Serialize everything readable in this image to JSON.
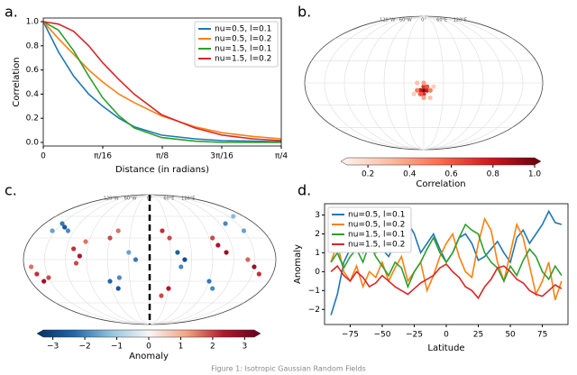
{
  "chart_data": [
    {
      "type": "line",
      "panel_label": "a.",
      "x_label": "Distance (in radians)",
      "y_label": "Correlation",
      "x": [
        0,
        0.05,
        0.1,
        0.15,
        0.196,
        0.25,
        0.3,
        0.39,
        0.5,
        0.59,
        0.69,
        0.785
      ],
      "xlim": [
        0,
        0.7854
      ],
      "xticks": [
        0,
        {
          "value": 0.19635,
          "label": "π/16"
        },
        {
          "value": 0.3927,
          "label": "π/8"
        },
        {
          "value": 0.58905,
          "label": "3π/16"
        },
        {
          "value": 0.7854,
          "label": "π/4"
        }
      ],
      "ylim": [
        -0.03,
        1.03
      ],
      "yticks": [
        {
          "value": 0,
          "label": "0.0"
        },
        0.2,
        0.4,
        0.6,
        0.8,
        {
          "value": 1,
          "label": "1.0"
        }
      ],
      "legend": "upper right",
      "series": [
        {
          "name": "nu=0.5, l=0.1",
          "color": "#1f77b4",
          "values": [
            1,
            0.75,
            0.55,
            0.4,
            0.3,
            0.2,
            0.13,
            0.06,
            0.03,
            0.015,
            0.01,
            0.005
          ]
        },
        {
          "name": "nu=0.5, l=0.2",
          "color": "#ff7f0e",
          "values": [
            1,
            0.86,
            0.73,
            0.6,
            0.5,
            0.4,
            0.33,
            0.22,
            0.13,
            0.08,
            0.05,
            0.03
          ]
        },
        {
          "name": "nu=1.5, l=0.1",
          "color": "#2ca02c",
          "values": [
            1,
            0.93,
            0.76,
            0.55,
            0.37,
            0.22,
            0.12,
            0.04,
            0.01,
            0,
            0,
            0
          ]
        },
        {
          "name": "nu=1.5, l=0.2",
          "color": "#d62728",
          "values": [
            1,
            0.98,
            0.92,
            0.8,
            0.66,
            0.52,
            0.4,
            0.23,
            0.12,
            0.06,
            0.03,
            0.015
          ]
        }
      ]
    },
    {
      "type": "map",
      "panel_label": "b.",
      "lon_ticks": [
        {
          "value": -120,
          "label": "120°W"
        },
        {
          "value": -60,
          "label": "60°W"
        },
        {
          "value": 0,
          "label": "0°"
        },
        {
          "value": 60,
          "label": "60°E"
        },
        {
          "value": 120,
          "label": "120°E"
        }
      ],
      "lon": [
        0,
        5,
        -5,
        0,
        0,
        5,
        -5,
        10,
        -10,
        0,
        0,
        10,
        -10,
        15,
        -15
      ],
      "lat": [
        -10,
        -10,
        -10,
        -5,
        -15,
        -5,
        -15,
        -10,
        -10,
        0,
        -20,
        -20,
        0,
        -5,
        -15
      ],
      "values": [
        1.0,
        0.8,
        0.8,
        0.7,
        0.7,
        0.6,
        0.6,
        0.5,
        0.5,
        0.4,
        0.4,
        0.3,
        0.3,
        0.25,
        0.25
      ],
      "colorbar": {
        "label": "Correlation",
        "lim": [
          0.1,
          1.0
        ],
        "ticks": [
          0.2,
          0.4,
          0.6,
          0.8,
          {
            "value": 1,
            "label": "1.0"
          }
        ],
        "colormap": [
          "#fff5f0",
          "#fcbba1",
          "#fb6a4a",
          "#cb181d",
          "#67000d"
        ]
      }
    },
    {
      "type": "map",
      "panel_label": "c.",
      "dashed_meridian": 0,
      "lon_ticks": [
        {
          "value": -120,
          "label": "120°W"
        },
        {
          "value": -60,
          "label": "60°W"
        },
        {
          "value": 0,
          "label": "0°"
        },
        {
          "value": 60,
          "label": "60°E"
        },
        {
          "value": 120,
          "label": "120°E"
        }
      ],
      "lon": [
        -150,
        -140,
        -130,
        -155,
        -165,
        -160,
        -150,
        -170,
        -110,
        -100,
        -105,
        -95,
        -60,
        -50,
        -45,
        -60,
        -50,
        -30,
        -20,
        20,
        30,
        40,
        50,
        45,
        30,
        20,
        100,
        110,
        95,
        90,
        100,
        150,
        160,
        140,
        130,
        150,
        160
      ],
      "lat": [
        50,
        45,
        40,
        40,
        -20,
        -30,
        -25,
        -10,
        15,
        5,
        -5,
        25,
        -30,
        -40,
        -25,
        30,
        40,
        10,
        0,
        40,
        30,
        10,
        0,
        -10,
        -40,
        -50,
        20,
        10,
        30,
        -30,
        -40,
        -10,
        -20,
        0,
        50,
        40,
        60
      ],
      "values": [
        -2,
        -2.5,
        -1.8,
        -1.5,
        2,
        2.5,
        1.8,
        1.5,
        2,
        2.3,
        1.8,
        1.5,
        -2.2,
        -2.5,
        -1.8,
        1.8,
        1.5,
        -1.5,
        -2,
        2,
        1.8,
        -2.3,
        -2.7,
        -1.8,
        2.2,
        1.8,
        2.3,
        2.6,
        1.8,
        -2,
        -1.8,
        2.5,
        2,
        1.6,
        -1.8,
        -1.5,
        -1.2
      ],
      "colorbar": {
        "label": "Anomaly",
        "lim": [
          -3.3,
          3.3
        ],
        "ticks": [
          {
            "value": -3,
            "label": "−3"
          },
          {
            "value": -2,
            "label": "−2"
          },
          {
            "value": -1,
            "label": "−1"
          },
          0,
          1,
          2,
          3
        ],
        "colormap": [
          "#053061",
          "#2166ac",
          "#92c5de",
          "#f7f7f7",
          "#f4a582",
          "#b2182b",
          "#67001f"
        ]
      }
    },
    {
      "type": "line",
      "panel_label": "d.",
      "x_label": "Latitude",
      "y_label": "Anomaly",
      "x": [
        -90,
        -85,
        -80,
        -75,
        -70,
        -65,
        -60,
        -55,
        -50,
        -45,
        -40,
        -35,
        -30,
        -25,
        -20,
        -15,
        -10,
        -5,
        0,
        5,
        10,
        15,
        20,
        25,
        30,
        35,
        40,
        45,
        50,
        55,
        60,
        65,
        70,
        75,
        80,
        85,
        90
      ],
      "xlim": [
        -95,
        95
      ],
      "xticks": [
        {
          "value": -75,
          "label": "−75"
        },
        {
          "value": -50,
          "label": "−50"
        },
        {
          "value": -25,
          "label": "−25"
        },
        0,
        25,
        50,
        75
      ],
      "ylim": [
        -2.8,
        3.6
      ],
      "yticks": [
        {
          "value": -2,
          "label": "−2"
        },
        {
          "value": -1,
          "label": "−1"
        },
        0,
        1,
        2,
        3
      ],
      "legend": "upper left",
      "series": [
        {
          "name": "nu=0.5, l=0.1",
          "color": "#1f77b4",
          "values": [
            -2.3,
            -1.2,
            0.5,
            1.2,
            1.5,
            1.0,
            1.8,
            1.0,
            1.2,
            0.8,
            1.5,
            2.3,
            2.6,
            2.0,
            1.0,
            1.5,
            2.0,
            1.2,
            0.5,
            1.0,
            1.8,
            2.0,
            1.5,
            0.6,
            0.8,
            1.2,
            1.6,
            1.0,
            0.5,
            1.8,
            2.2,
            1.5,
            2.0,
            2.5,
            3.2,
            2.6,
            2.5
          ]
        },
        {
          "name": "nu=0.5, l=0.2",
          "color": "#ff7f0e",
          "values": [
            0.5,
            1.5,
            0.0,
            -0.5,
            0.3,
            -0.8,
            0.0,
            -0.3,
            0.5,
            -0.5,
            0.2,
            0.8,
            -0.5,
            0.0,
            0.5,
            -1.0,
            -0.2,
            0.8,
            1.5,
            2.0,
            0.8,
            0.0,
            -0.3,
            1.5,
            2.8,
            2.2,
            0.5,
            -0.5,
            1.0,
            2.5,
            1.8,
            0.3,
            -1.2,
            -0.5,
            0.5,
            -1.5,
            -0.5
          ]
        },
        {
          "name": "nu=1.5, l=0.1",
          "color": "#2ca02c",
          "values": [
            0.5,
            1.0,
            0.2,
            0.8,
            1.2,
            0.5,
            1.5,
            0.8,
            0.3,
            -0.2,
            0.5,
            0.2,
            -0.8,
            0.0,
            0.5,
            1.2,
            1.8,
            1.0,
            0.5,
            1.0,
            1.8,
            2.5,
            2.2,
            2.0,
            1.0,
            0.5,
            0.2,
            -0.5,
            0.3,
            -0.2,
            0.6,
            1.2,
            0.8,
            0.0,
            -0.4,
            0.3,
            -0.2
          ]
        },
        {
          "name": "nu=1.5, l=0.2",
          "color": "#d62728",
          "values": [
            0.0,
            0.3,
            -0.2,
            -0.5,
            0.0,
            -0.3,
            -0.8,
            -0.6,
            -0.2,
            -0.5,
            -0.8,
            -1.0,
            -1.2,
            -0.9,
            -0.6,
            -0.4,
            -0.2,
            0.2,
            0.4,
            0.0,
            -0.3,
            -0.8,
            -1.0,
            -1.4,
            -0.8,
            -0.4,
            0.2,
            0.3,
            0.0,
            -0.4,
            -0.6,
            -1.0,
            -1.2,
            -1.3,
            -1.0,
            -0.7,
            -0.9
          ]
        }
      ]
    }
  ],
  "caption": "Figure 1: Isotropic Gaussian Random Fields"
}
